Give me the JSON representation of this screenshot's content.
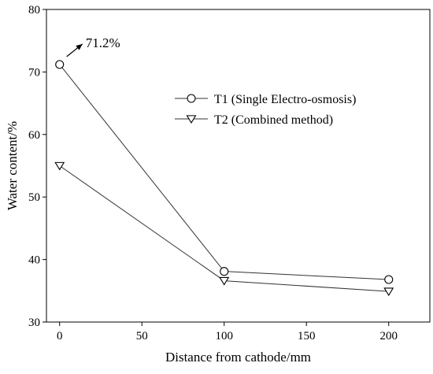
{
  "chart_data": {
    "type": "line",
    "xlabel": "Distance from cathode/mm",
    "ylabel": "Water content/%",
    "xlim": [
      -8,
      225
    ],
    "ylim": [
      30,
      80
    ],
    "xticks": [
      0,
      50,
      100,
      150,
      200
    ],
    "yticks": [
      30,
      40,
      50,
      60,
      70,
      80
    ],
    "x": [
      0,
      100,
      200
    ],
    "series": [
      {
        "name": "T1 (Single Electro-osmosis)",
        "marker": "circle",
        "values": [
          71.2,
          38.1,
          36.8
        ]
      },
      {
        "name": "T2 (Combined method)",
        "marker": "triangle-down",
        "values": [
          55.0,
          36.6,
          34.9
        ]
      }
    ],
    "annotations": [
      {
        "text": "71.2%",
        "x": 0,
        "y": 71.2
      }
    ],
    "legend_position": "upper-right",
    "grid": false,
    "colors": {
      "line": "#333333",
      "axis": "#000000",
      "marker_fill": "#ffffff"
    }
  }
}
